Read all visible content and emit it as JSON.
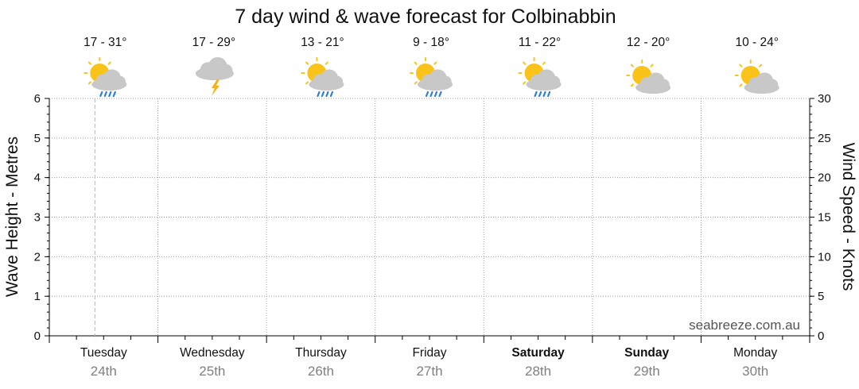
{
  "chart_data": {
    "type": "line",
    "title": "7 day wind & wave forecast for Colbinabbin",
    "ylabel": "Wave Height - Metres",
    "y2label": "Wind Speed - Knots",
    "ylim": [
      0,
      6
    ],
    "y2lim": [
      0,
      30
    ],
    "yticks": [
      "0",
      "1",
      "2",
      "3",
      "4",
      "5",
      "6"
    ],
    "y2ticks": [
      "0",
      "5",
      "10",
      "15",
      "20",
      "25",
      "30"
    ],
    "grid": true,
    "series": [],
    "days": [
      {
        "day": "Tuesday",
        "date": "24th",
        "temp": "17 - 31°",
        "icon": "partly-cloudy-rain-icon",
        "bold": false
      },
      {
        "day": "Wednesday",
        "date": "25th",
        "temp": "17 - 29°",
        "icon": "thunderstorm-icon",
        "bold": false
      },
      {
        "day": "Thursday",
        "date": "26th",
        "temp": "13 - 21°",
        "icon": "partly-cloudy-rain-icon",
        "bold": false
      },
      {
        "day": "Friday",
        "date": "27th",
        "temp": "9 - 18°",
        "icon": "partly-cloudy-rain-icon",
        "bold": false
      },
      {
        "day": "Saturday",
        "date": "28th",
        "temp": "11 - 22°",
        "icon": "partly-cloudy-rain-icon",
        "bold": true
      },
      {
        "day": "Sunday",
        "date": "29th",
        "temp": "12 - 20°",
        "icon": "partly-cloudy-icon",
        "bold": true
      },
      {
        "day": "Monday",
        "date": "30th",
        "temp": "10 - 24°",
        "icon": "partly-cloudy-icon",
        "bold": false
      }
    ],
    "current_time_day_fraction": 0.42
  },
  "watermark": "seabreeze.com.au",
  "colors": {
    "sun": "#f9c31a",
    "cloud": "#c8c8c8",
    "rain": "#2a7fd6",
    "bolt": "#f3b21a",
    "now_line": "#f0a0a0",
    "grid": "#a0a0a0",
    "date": "#808080"
  }
}
